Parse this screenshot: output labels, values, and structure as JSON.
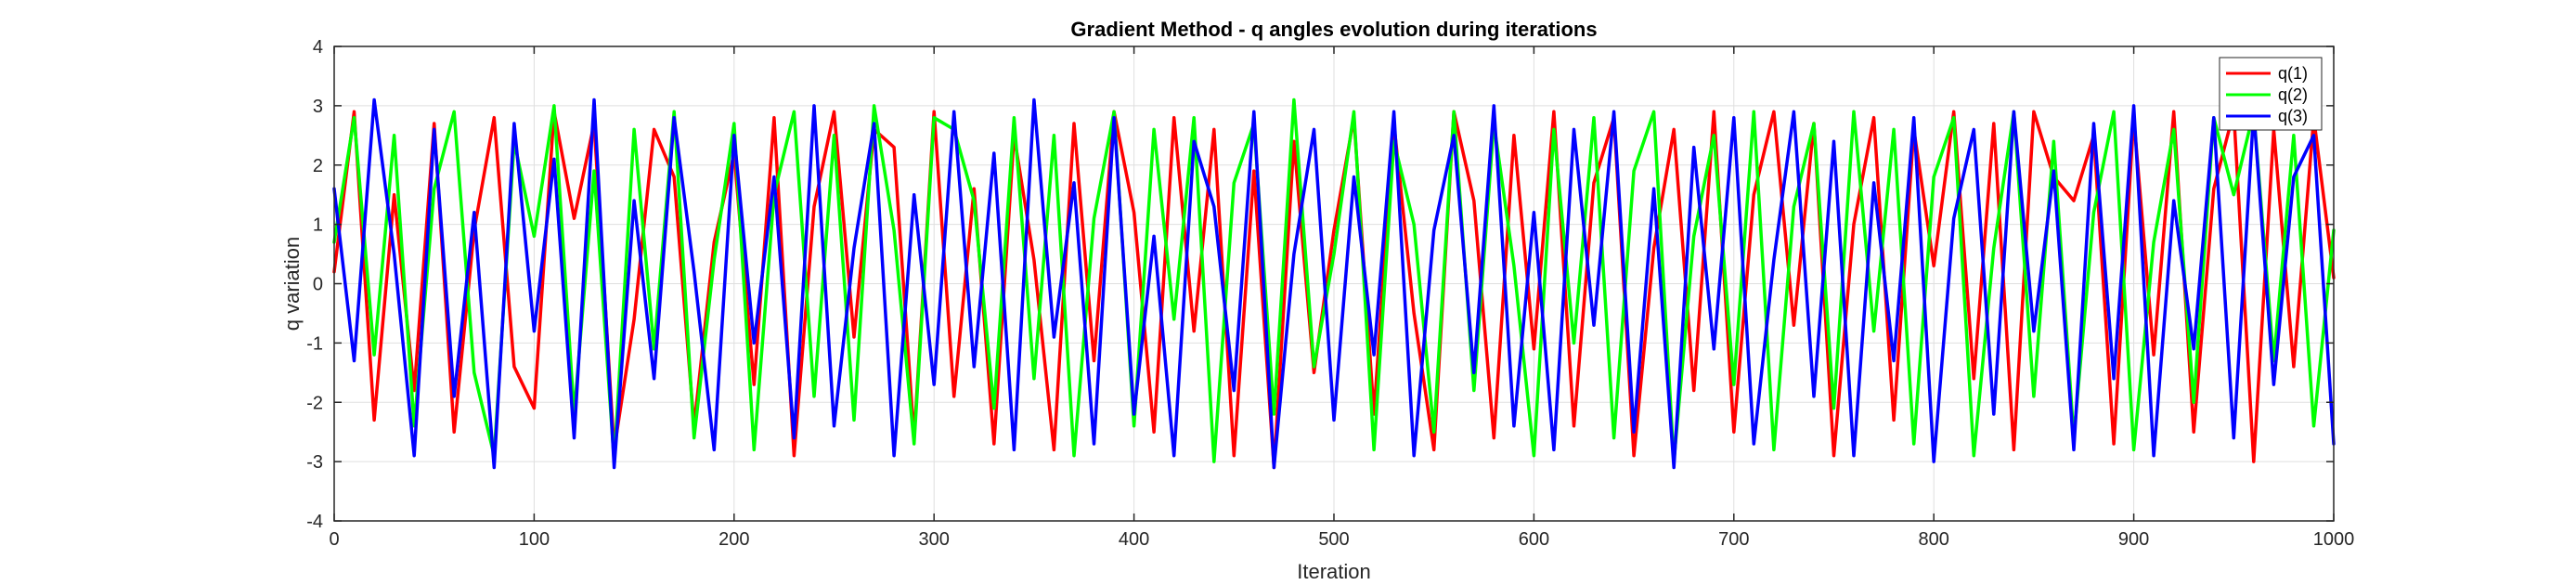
{
  "chart_data": {
    "type": "line",
    "title": "Gradient Method - q angles evolution during iterations",
    "xlabel": "Iteration",
    "ylabel": "q variation",
    "xlim": [
      0,
      1000
    ],
    "ylim": [
      -4,
      4
    ],
    "xticks": [
      "0",
      "100",
      "200",
      "300",
      "400",
      "500",
      "600",
      "700",
      "800",
      "900",
      "1000"
    ],
    "yticks": [
      "-4",
      "-3",
      "-2",
      "-1",
      "0",
      "1",
      "2",
      "3",
      "4"
    ],
    "grid": true,
    "legend_position": "top-right",
    "series": [
      {
        "name": "q(1)",
        "color": "#ff0000",
        "x_start": 0,
        "x_step": 10,
        "values": [
          0.2,
          2.9,
          -2.3,
          1.5,
          -1.8,
          2.7,
          -2.5,
          0.9,
          2.8,
          -1.4,
          -2.1,
          2.9,
          1.1,
          2.7,
          -2.8,
          -0.6,
          2.6,
          1.8,
          -2.4,
          0.7,
          2.2,
          -1.7,
          2.8,
          -2.9,
          1.3,
          2.9,
          -0.9,
          2.6,
          2.3,
          -2.6,
          2.9,
          -1.9,
          1.6,
          -2.7,
          2.5,
          0.4,
          -2.8,
          2.7,
          -1.3,
          2.9,
          1.2,
          -2.5,
          2.8,
          -0.8,
          2.6,
          -2.9,
          1.9,
          -3.1,
          2.4,
          -1.5,
          0.9,
          2.8,
          -2.2,
          2.7,
          -0.5,
          -2.8,
          2.9,
          1.4,
          -2.6,
          2.5,
          -1.1,
          2.9,
          -2.4,
          1.7,
          2.8,
          -2.9,
          0.6,
          2.6,
          -1.8,
          2.9,
          -2.5,
          1.5,
          2.9,
          -0.7,
          2.7,
          -2.9,
          1.0,
          2.8,
          -2.3,
          2.6,
          0.3,
          2.9,
          -1.6,
          2.7,
          -2.8,
          2.9,
          1.8,
          1.4,
          2.5,
          -2.7,
          2.8,
          -1.2,
          2.9,
          -2.5,
          1.6,
          2.9,
          -3.0,
          2.6,
          -1.4,
          2.8,
          0.1
        ]
      },
      {
        "name": "q(2)",
        "color": "#00ff00",
        "x_start": 0,
        "x_step": 10,
        "values": [
          0.7,
          2.8,
          -1.2,
          2.5,
          -2.4,
          1.6,
          2.9,
          -1.5,
          -2.9,
          2.4,
          0.8,
          3.0,
          -2.2,
          1.9,
          -3.0,
          2.6,
          -1.1,
          2.9,
          -2.6,
          0.4,
          2.7,
          -2.8,
          1.5,
          2.9,
          -1.9,
          2.5,
          -2.3,
          3.0,
          0.9,
          -2.7,
          2.8,
          2.6,
          1.4,
          -2.1,
          2.8,
          -1.6,
          2.5,
          -2.9,
          1.1,
          2.9,
          -2.4,
          2.6,
          -0.6,
          2.8,
          -3.0,
          1.7,
          2.7,
          -2.2,
          3.1,
          -1.4,
          0.5,
          2.9,
          -2.8,
          2.4,
          1.0,
          -2.5,
          2.9,
          -1.8,
          2.7,
          0.3,
          -2.9,
          2.6,
          -1.0,
          2.8,
          -2.6,
          1.9,
          2.9,
          -3.0,
          0.8,
          2.5,
          -1.7,
          2.9,
          -2.8,
          1.3,
          2.7,
          -2.1,
          2.9,
          -0.8,
          2.6,
          -2.7,
          1.8,
          2.8,
          -2.9,
          0.6,
          2.9,
          -1.9,
          2.4,
          -2.6,
          1.2,
          2.9,
          -2.8,
          0.7,
          2.6,
          -2.0,
          2.8,
          1.5,
          2.9,
          -1.3,
          2.5,
          -2.4,
          0.9
        ]
      },
      {
        "name": "q(3)",
        "color": "#0000ff",
        "x_start": 0,
        "x_step": 10,
        "values": [
          1.6,
          -1.3,
          3.1,
          0.5,
          -2.9,
          2.6,
          -1.9,
          1.2,
          -3.1,
          2.7,
          -0.8,
          2.1,
          -2.6,
          3.1,
          -3.1,
          1.4,
          -1.6,
          2.8,
          0.2,
          -2.8,
          2.5,
          -1.0,
          1.8,
          -2.6,
          3.0,
          -2.4,
          0.6,
          2.7,
          -2.9,
          1.5,
          -1.7,
          2.9,
          -1.4,
          2.2,
          -2.8,
          3.1,
          -0.9,
          1.7,
          -2.7,
          2.8,
          -2.2,
          0.8,
          -2.9,
          2.4,
          1.3,
          -1.8,
          2.9,
          -3.1,
          0.5,
          2.6,
          -2.3,
          1.8,
          -1.2,
          2.9,
          -2.9,
          0.9,
          2.5,
          -1.5,
          3.0,
          -2.4,
          1.2,
          -2.8,
          2.6,
          -0.7,
          2.9,
          -2.5,
          1.6,
          -3.1,
          2.3,
          -1.1,
          2.8,
          -2.7,
          0.4,
          2.9,
          -1.9,
          2.4,
          -2.9,
          1.7,
          -1.3,
          2.8,
          -3.0,
          1.1,
          2.6,
          -2.2,
          2.9,
          -0.8,
          1.9,
          -2.8,
          2.7,
          -1.6,
          3.0,
          -2.9,
          1.4,
          -1.1,
          2.8,
          -2.6,
          2.9,
          -1.7,
          1.8,
          2.5,
          -2.7
        ]
      }
    ]
  }
}
